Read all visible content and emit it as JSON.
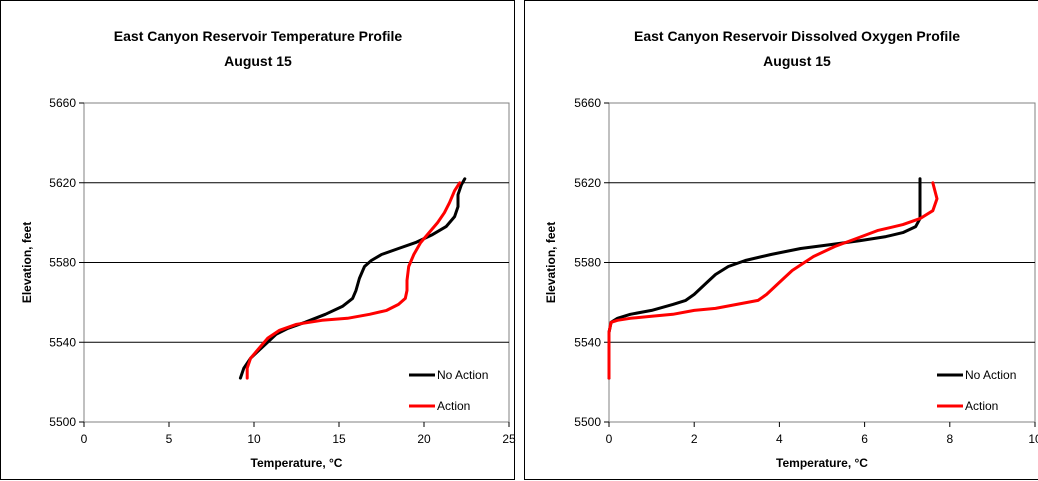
{
  "chart_data": [
    {
      "type": "line",
      "title": "East Canyon Reservoir Temperature Profile",
      "subtitle": "August 15",
      "xlabel": "Temperature, °C",
      "ylabel": "Elevation, feet",
      "xlim": [
        0,
        25
      ],
      "ylim": [
        5500,
        5660
      ],
      "xticks": [
        "0",
        "5",
        "10",
        "15",
        "20",
        "25"
      ],
      "yticks": [
        "5500",
        "5540",
        "5580",
        "5620",
        "5660"
      ],
      "grid": "horizontal",
      "legend_position": "bottom-right",
      "series": [
        {
          "name": "No Action",
          "color": "#000000",
          "points": [
            [
              9.2,
              5522
            ],
            [
              9.4,
              5527
            ],
            [
              9.8,
              5532
            ],
            [
              10.3,
              5536
            ],
            [
              10.8,
              5540
            ],
            [
              11.3,
              5544
            ],
            [
              12.0,
              5547
            ],
            [
              13.0,
              5550
            ],
            [
              14.2,
              5554
            ],
            [
              15.2,
              5558
            ],
            [
              15.8,
              5562
            ],
            [
              16.0,
              5566
            ],
            [
              16.2,
              5572
            ],
            [
              16.5,
              5578
            ],
            [
              16.9,
              5581
            ],
            [
              17.5,
              5584
            ],
            [
              18.5,
              5587
            ],
            [
              19.5,
              5590
            ],
            [
              20.5,
              5594
            ],
            [
              21.3,
              5598
            ],
            [
              21.8,
              5603
            ],
            [
              22.0,
              5608
            ],
            [
              22.0,
              5614
            ],
            [
              22.2,
              5619
            ],
            [
              22.4,
              5622
            ]
          ]
        },
        {
          "name": "Action",
          "color": "#ff0000",
          "points": [
            [
              9.6,
              5522
            ],
            [
              9.6,
              5527
            ],
            [
              9.8,
              5532
            ],
            [
              10.3,
              5537
            ],
            [
              10.8,
              5542
            ],
            [
              11.5,
              5546
            ],
            [
              12.5,
              5549
            ],
            [
              14.0,
              5551
            ],
            [
              15.5,
              5552
            ],
            [
              16.8,
              5554
            ],
            [
              17.8,
              5556
            ],
            [
              18.5,
              5559
            ],
            [
              18.9,
              5562
            ],
            [
              19.0,
              5566
            ],
            [
              19.0,
              5571
            ],
            [
              19.1,
              5578
            ],
            [
              19.4,
              5584
            ],
            [
              19.8,
              5590
            ],
            [
              20.3,
              5595
            ],
            [
              20.8,
              5600
            ],
            [
              21.2,
              5605
            ],
            [
              21.5,
              5610
            ],
            [
              21.8,
              5616
            ],
            [
              22.1,
              5620
            ]
          ]
        }
      ]
    },
    {
      "type": "line",
      "title": "East Canyon Reservoir Dissolved Oxygen Profile",
      "subtitle": "August 15",
      "xlabel": "Temperature, °C",
      "ylabel": "Elevation, feet",
      "xlim": [
        0,
        10
      ],
      "ylim": [
        5500,
        5660
      ],
      "xticks": [
        "0",
        "2",
        "4",
        "6",
        "8",
        "10"
      ],
      "yticks": [
        "5500",
        "5540",
        "5580",
        "5620",
        "5660"
      ],
      "grid": "horizontal",
      "legend_position": "bottom-right",
      "series": [
        {
          "name": "No Action",
          "color": "#000000",
          "points": [
            [
              0.0,
              5522
            ],
            [
              0.0,
              5545
            ],
            [
              0.05,
              5550
            ],
            [
              0.2,
              5552
            ],
            [
              0.5,
              5554
            ],
            [
              1.0,
              5556
            ],
            [
              1.5,
              5559
            ],
            [
              1.8,
              5561
            ],
            [
              2.0,
              5564
            ],
            [
              2.3,
              5570
            ],
            [
              2.5,
              5574
            ],
            [
              2.8,
              5578
            ],
            [
              3.2,
              5581
            ],
            [
              3.8,
              5584
            ],
            [
              4.5,
              5587
            ],
            [
              5.2,
              5589
            ],
            [
              5.9,
              5591
            ],
            [
              6.5,
              5593
            ],
            [
              6.9,
              5595
            ],
            [
              7.2,
              5598
            ],
            [
              7.3,
              5602
            ],
            [
              7.3,
              5610
            ],
            [
              7.3,
              5622
            ]
          ]
        },
        {
          "name": "Action",
          "color": "#ff0000",
          "points": [
            [
              0.0,
              5522
            ],
            [
              0.0,
              5545
            ],
            [
              0.05,
              5550
            ],
            [
              0.2,
              5551
            ],
            [
              0.5,
              5552
            ],
            [
              1.0,
              5553
            ],
            [
              1.5,
              5554
            ],
            [
              2.0,
              5556
            ],
            [
              2.5,
              5557
            ],
            [
              3.0,
              5559
            ],
            [
              3.5,
              5561
            ],
            [
              3.7,
              5564
            ],
            [
              4.0,
              5570
            ],
            [
              4.3,
              5576
            ],
            [
              4.8,
              5583
            ],
            [
              5.3,
              5588
            ],
            [
              5.8,
              5592
            ],
            [
              6.3,
              5596
            ],
            [
              6.9,
              5599
            ],
            [
              7.3,
              5602
            ],
            [
              7.6,
              5606
            ],
            [
              7.7,
              5612
            ],
            [
              7.6,
              5620
            ]
          ]
        }
      ]
    }
  ]
}
